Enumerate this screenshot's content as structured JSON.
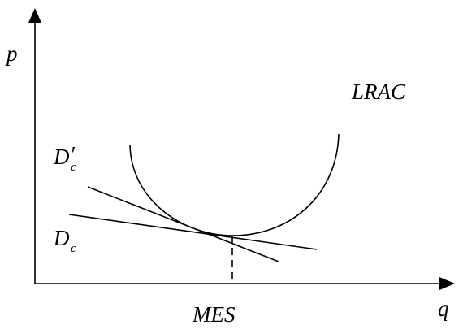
{
  "axes": {
    "y_label": "p",
    "x_label": "q"
  },
  "curve_label": "LRAC",
  "demand_labels": {
    "steep_main": "D",
    "steep_prime": "′",
    "steep_sub": "c",
    "flat_main": "D",
    "flat_sub": "c"
  },
  "marker_label": "MES"
}
